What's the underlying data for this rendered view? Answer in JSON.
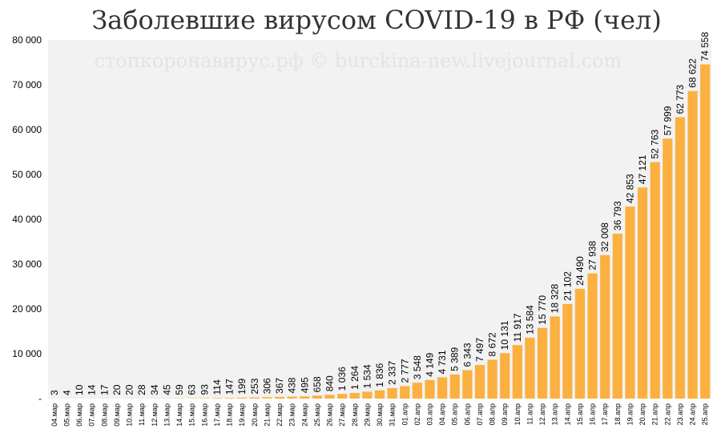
{
  "chart_data": {
    "type": "bar",
    "title": "Заболевшие вирусом COVID-19 в РФ (чел)",
    "watermark": "стопкоронавирус.рф © burckina-new.livejournal.com",
    "xlabel": "",
    "ylabel": "",
    "ylim": [
      0,
      80000
    ],
    "yticks": [
      0,
      10000,
      20000,
      30000,
      40000,
      50000,
      60000,
      70000,
      80000
    ],
    "ytick_labels": [
      "-",
      "10 000",
      "20 000",
      "30 000",
      "40 000",
      "50 000",
      "60 000",
      "70 000",
      "80 000"
    ],
    "grid": false,
    "bar_color": "#fbb040",
    "plot_background": "#f2f2f2",
    "categories": [
      "04.мар",
      "05.мар",
      "06.мар",
      "07.мар",
      "08.мар",
      "09.мар",
      "10.мар",
      "11.мар",
      "12.мар",
      "13.мар",
      "14.мар",
      "15.мар",
      "16.мар",
      "17.мар",
      "18.мар",
      "19.мар",
      "20.мар",
      "21.мар",
      "22.мар",
      "23.мар",
      "24.мар",
      "25.мар",
      "26.мар",
      "27.мар",
      "28.мар",
      "29.мар",
      "30.мар",
      "31.мар",
      "01.апр",
      "02.апр",
      "03.апр",
      "04.апр",
      "05.апр",
      "06.апр",
      "07.апр",
      "08.апр",
      "09.апр",
      "10.апр",
      "11.апр",
      "12.апр",
      "13.апр",
      "14.апр",
      "15.апр",
      "16.апр",
      "17.апр",
      "18.апр",
      "19.апр",
      "20.апр",
      "21.апр",
      "22.апр",
      "23.апр",
      "24.апр",
      "25.апр"
    ],
    "values": [
      3,
      4,
      10,
      14,
      17,
      20,
      20,
      28,
      34,
      45,
      59,
      63,
      93,
      114,
      147,
      199,
      253,
      306,
      367,
      438,
      495,
      658,
      840,
      1036,
      1264,
      1534,
      1836,
      2337,
      2777,
      3548,
      4149,
      4731,
      5389,
      6343,
      7497,
      8672,
      10131,
      11917,
      13584,
      15770,
      18328,
      21102,
      24490,
      27938,
      32008,
      36793,
      42853,
      47121,
      52763,
      57999,
      62773,
      68622,
      74558
    ],
    "value_labels": [
      "3",
      "4",
      "10",
      "14",
      "17",
      "20",
      "20",
      "28",
      "34",
      "45",
      "59",
      "63",
      "93",
      "114",
      "147",
      "199",
      "253",
      "306",
      "367",
      "438",
      "495",
      "658",
      "840",
      "1 036",
      "1 264",
      "1 534",
      "1 836",
      "2 337",
      "2 777",
      "3 548",
      "4 149",
      "4 731",
      "5 389",
      "6 343",
      "7 497",
      "8 672",
      "10 131",
      "11 917",
      "13 584",
      "15 770",
      "18 328",
      "21 102",
      "24 490",
      "27 938",
      "32 008",
      "36 793",
      "42 853",
      "47 121",
      "52 763",
      "57 999",
      "62 773",
      "68 622",
      "74 558"
    ]
  }
}
